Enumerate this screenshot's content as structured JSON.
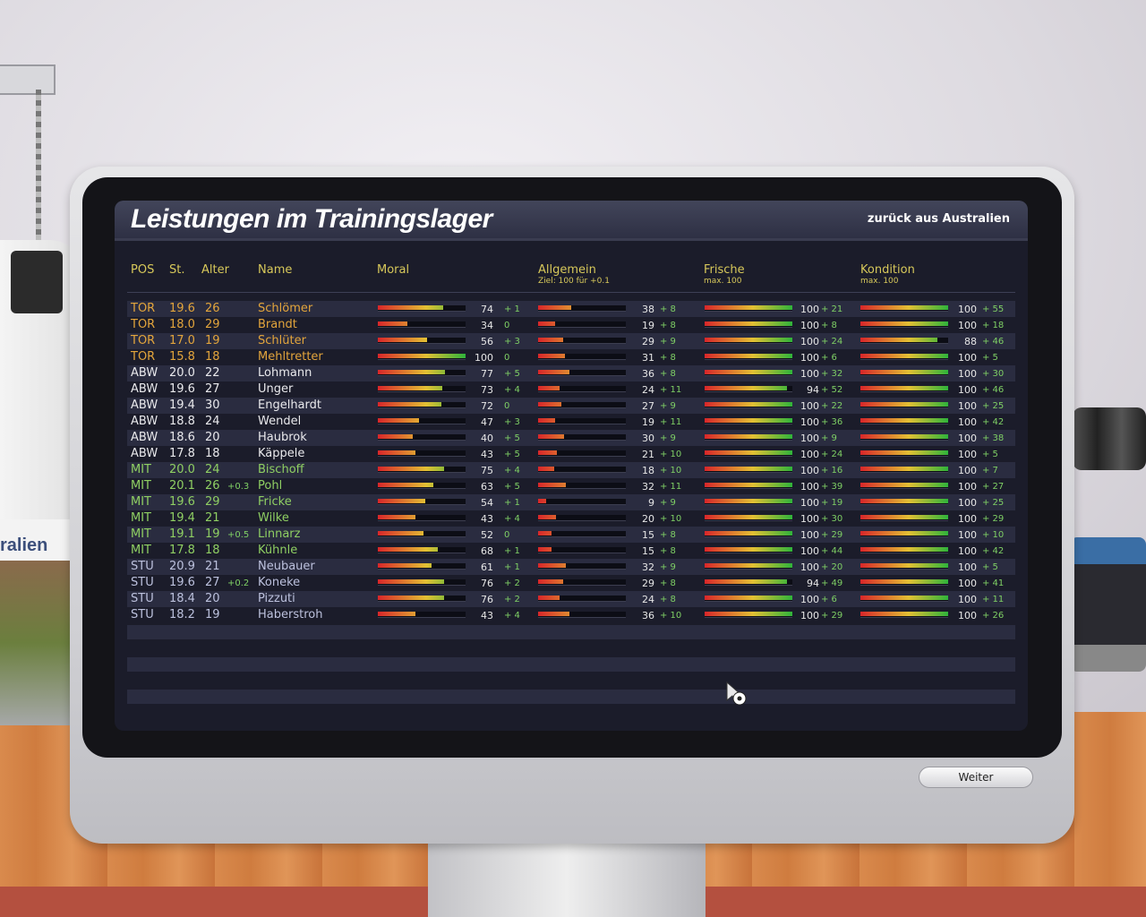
{
  "title": "Leistungen im Trainingslager",
  "subtitle": "zurück aus Australien",
  "banner_text": "ralien",
  "headers": {
    "pos": "POS",
    "st": "St.",
    "alter": "Alter",
    "name": "Name",
    "moral": "Moral",
    "allgemein": "Allgemein",
    "allgemein_sub": "Ziel: 100 für +0.1",
    "frische": "Frische",
    "frische_sub": "max. 100",
    "kondition": "Kondition",
    "kondition_sub": "max. 100"
  },
  "players": [
    {
      "pos": "TOR",
      "st": "19.6",
      "alter": "26",
      "bonus": "",
      "name": "Schlömer",
      "moral": 74,
      "moral_d": "+ 1",
      "allg": 38,
      "allg_d": "+ 8",
      "fri": 100,
      "fri_d": "+ 21",
      "kon": 100,
      "kon_d": "+ 55"
    },
    {
      "pos": "TOR",
      "st": "18.0",
      "alter": "29",
      "bonus": "",
      "name": "Brandt",
      "moral": 34,
      "moral_d": "0",
      "allg": 19,
      "allg_d": "+ 8",
      "fri": 100,
      "fri_d": "+ 8",
      "kon": 100,
      "kon_d": "+ 18"
    },
    {
      "pos": "TOR",
      "st": "17.0",
      "alter": "19",
      "bonus": "",
      "name": "Schlüter",
      "moral": 56,
      "moral_d": "+ 3",
      "allg": 29,
      "allg_d": "+ 9",
      "fri": 100,
      "fri_d": "+ 24",
      "kon": 88,
      "kon_d": "+ 46"
    },
    {
      "pos": "TOR",
      "st": "15.8",
      "alter": "18",
      "bonus": "",
      "name": "Mehltretter",
      "moral": 100,
      "moral_d": "0",
      "allg": 31,
      "allg_d": "+ 8",
      "fri": 100,
      "fri_d": "+ 6",
      "kon": 100,
      "kon_d": "+ 5"
    },
    {
      "pos": "ABW",
      "st": "20.0",
      "alter": "22",
      "bonus": "",
      "name": "Lohmann",
      "moral": 77,
      "moral_d": "+ 5",
      "allg": 36,
      "allg_d": "+ 8",
      "fri": 100,
      "fri_d": "+ 32",
      "kon": 100,
      "kon_d": "+ 30"
    },
    {
      "pos": "ABW",
      "st": "19.6",
      "alter": "27",
      "bonus": "",
      "name": "Unger",
      "moral": 73,
      "moral_d": "+ 4",
      "allg": 24,
      "allg_d": "+ 11",
      "fri": 94,
      "fri_d": "+ 52",
      "kon": 100,
      "kon_d": "+ 46"
    },
    {
      "pos": "ABW",
      "st": "19.4",
      "alter": "30",
      "bonus": "",
      "name": "Engelhardt",
      "moral": 72,
      "moral_d": "0",
      "allg": 27,
      "allg_d": "+ 9",
      "fri": 100,
      "fri_d": "+ 22",
      "kon": 100,
      "kon_d": "+ 25"
    },
    {
      "pos": "ABW",
      "st": "18.8",
      "alter": "24",
      "bonus": "",
      "name": "Wendel",
      "moral": 47,
      "moral_d": "+ 3",
      "allg": 19,
      "allg_d": "+ 11",
      "fri": 100,
      "fri_d": "+ 36",
      "kon": 100,
      "kon_d": "+ 42"
    },
    {
      "pos": "ABW",
      "st": "18.6",
      "alter": "20",
      "bonus": "",
      "name": "Haubrok",
      "moral": 40,
      "moral_d": "+ 5",
      "allg": 30,
      "allg_d": "+ 9",
      "fri": 100,
      "fri_d": "+ 9",
      "kon": 100,
      "kon_d": "+ 38"
    },
    {
      "pos": "ABW",
      "st": "17.8",
      "alter": "18",
      "bonus": "",
      "name": "Käppele",
      "moral": 43,
      "moral_d": "+ 5",
      "allg": 21,
      "allg_d": "+ 10",
      "fri": 100,
      "fri_d": "+ 24",
      "kon": 100,
      "kon_d": "+ 5"
    },
    {
      "pos": "MIT",
      "st": "20.0",
      "alter": "24",
      "bonus": "",
      "name": "Bischoff",
      "moral": 75,
      "moral_d": "+ 4",
      "allg": 18,
      "allg_d": "+ 10",
      "fri": 100,
      "fri_d": "+ 16",
      "kon": 100,
      "kon_d": "+ 7"
    },
    {
      "pos": "MIT",
      "st": "20.1",
      "alter": "26",
      "bonus": "+0.3",
      "name": "Pohl",
      "moral": 63,
      "moral_d": "+ 5",
      "allg": 32,
      "allg_d": "+ 11",
      "fri": 100,
      "fri_d": "+ 39",
      "kon": 100,
      "kon_d": "+ 27"
    },
    {
      "pos": "MIT",
      "st": "19.6",
      "alter": "29",
      "bonus": "",
      "name": "Fricke",
      "moral": 54,
      "moral_d": "+ 1",
      "allg": 9,
      "allg_d": "+ 9",
      "fri": 100,
      "fri_d": "+ 19",
      "kon": 100,
      "kon_d": "+ 25"
    },
    {
      "pos": "MIT",
      "st": "19.4",
      "alter": "21",
      "bonus": "",
      "name": "Wilke",
      "moral": 43,
      "moral_d": "+ 4",
      "allg": 20,
      "allg_d": "+ 10",
      "fri": 100,
      "fri_d": "+ 30",
      "kon": 100,
      "kon_d": "+ 29"
    },
    {
      "pos": "MIT",
      "st": "19.1",
      "alter": "19",
      "bonus": "+0.5",
      "name": "Linnarz",
      "moral": 52,
      "moral_d": "0",
      "allg": 15,
      "allg_d": "+ 8",
      "fri": 100,
      "fri_d": "+ 29",
      "kon": 100,
      "kon_d": "+ 10"
    },
    {
      "pos": "MIT",
      "st": "17.8",
      "alter": "18",
      "bonus": "",
      "name": "Kühnle",
      "moral": 68,
      "moral_d": "+ 1",
      "allg": 15,
      "allg_d": "+ 8",
      "fri": 100,
      "fri_d": "+ 44",
      "kon": 100,
      "kon_d": "+ 42"
    },
    {
      "pos": "STU",
      "st": "20.9",
      "alter": "21",
      "bonus": "",
      "name": "Neubauer",
      "moral": 61,
      "moral_d": "+ 1",
      "allg": 32,
      "allg_d": "+ 9",
      "fri": 100,
      "fri_d": "+ 20",
      "kon": 100,
      "kon_d": "+ 5"
    },
    {
      "pos": "STU",
      "st": "19.6",
      "alter": "27",
      "bonus": "+0.2",
      "name": "Koneke",
      "moral": 76,
      "moral_d": "+ 2",
      "allg": 29,
      "allg_d": "+ 8",
      "fri": 94,
      "fri_d": "+ 49",
      "kon": 100,
      "kon_d": "+ 41"
    },
    {
      "pos": "STU",
      "st": "18.4",
      "alter": "20",
      "bonus": "",
      "name": "Pizzuti",
      "moral": 76,
      "moral_d": "+ 2",
      "allg": 24,
      "allg_d": "+ 8",
      "fri": 100,
      "fri_d": "+ 6",
      "kon": 100,
      "kon_d": "+ 11"
    },
    {
      "pos": "STU",
      "st": "18.2",
      "alter": "19",
      "bonus": "",
      "name": "Haberstroh",
      "moral": 43,
      "moral_d": "+ 4",
      "allg": 36,
      "allg_d": "+ 10",
      "fri": 100,
      "fri_d": "+ 29",
      "kon": 100,
      "kon_d": "+ 26"
    }
  ],
  "button_weiter": "Weiter",
  "colors": {
    "pos_TOR": "#e3a53c",
    "pos_ABW": "#e9e9ec",
    "pos_MIT": "#8fcf63",
    "pos_STU": "#bcc1dd",
    "header": "#d7c85a",
    "delta": "#7fd065"
  }
}
